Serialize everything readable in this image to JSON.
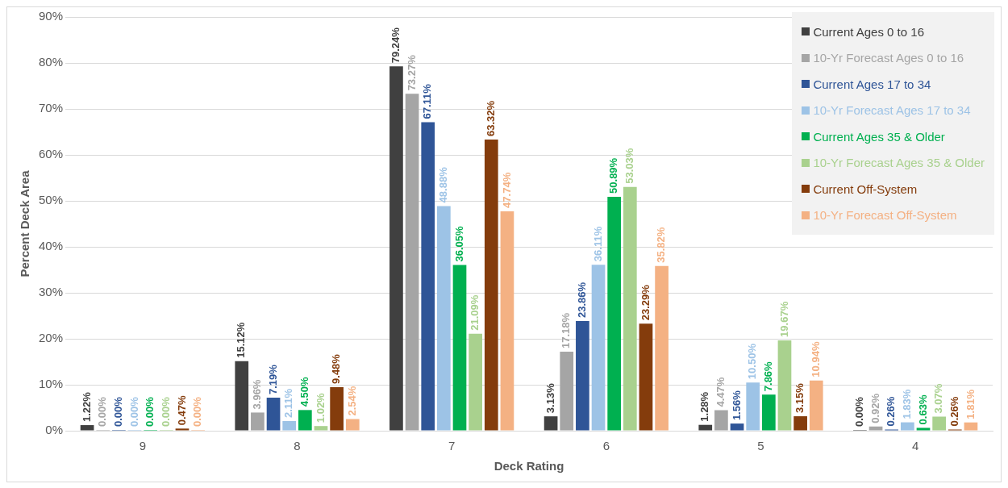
{
  "chart_data": {
    "type": "bar",
    "xlabel": "Deck Rating",
    "ylabel": "Percent Deck Area",
    "categories": [
      "9",
      "8",
      "7",
      "6",
      "5",
      "4"
    ],
    "ylim": [
      0,
      90
    ],
    "yticks": [
      {
        "value": 0,
        "label": "0%"
      },
      {
        "value": 10,
        "label": "10%"
      },
      {
        "value": 20,
        "label": "20%"
      },
      {
        "value": 30,
        "label": "30%"
      },
      {
        "value": 40,
        "label": "40%"
      },
      {
        "value": 50,
        "label": "50%"
      },
      {
        "value": 60,
        "label": "60%"
      },
      {
        "value": 70,
        "label": "70%"
      },
      {
        "value": 80,
        "label": "80%"
      },
      {
        "value": 90,
        "label": "90%"
      }
    ],
    "grid": "y",
    "legend": "top right",
    "series": [
      {
        "name": "Current Ages 0 to 16",
        "color": "#404040",
        "values": [
          1.22,
          15.12,
          79.24,
          3.13,
          1.28,
          0.0
        ],
        "value_labels": [
          "1.22%",
          "15.12%",
          "79.24%",
          "3.13%",
          "1.28%",
          "0.00%"
        ]
      },
      {
        "name": "10-Yr Forecast Ages 0 to 16",
        "color": "#a5a5a5",
        "values": [
          0.0,
          3.96,
          73.27,
          17.18,
          4.47,
          0.92
        ],
        "value_labels": [
          "0.00%",
          "3.96%",
          "73.27%",
          "17.18%",
          "4.47%",
          "0.92%"
        ]
      },
      {
        "name": "Current Ages 17 to 34",
        "color": "#2f5597",
        "values": [
          0.0,
          7.19,
          67.11,
          23.86,
          1.56,
          0.26
        ],
        "value_labels": [
          "0.00%",
          "7.19%",
          "67.11%",
          "23.86%",
          "1.56%",
          "0.26%"
        ]
      },
      {
        "name": "10-Yr Forecast Ages 17 to 34",
        "color": "#9dc3e6",
        "values": [
          0.0,
          2.11,
          48.88,
          36.11,
          10.5,
          1.83
        ],
        "value_labels": [
          "0.00%",
          "2.11%",
          "48.88%",
          "36.11%",
          "10.50%",
          "1.83%"
        ]
      },
      {
        "name": "Current Ages 35 & Older",
        "color": "#00b050",
        "values": [
          0.0,
          4.5,
          36.05,
          50.89,
          7.86,
          0.63
        ],
        "value_labels": [
          "0.00%",
          "4.50%",
          "36.05%",
          "50.89%",
          "7.86%",
          "0.63%"
        ]
      },
      {
        "name": "10-Yr Forecast Ages 35 & Older",
        "color": "#a9d18e",
        "values": [
          0.0,
          1.02,
          21.09,
          53.03,
          19.67,
          3.07
        ],
        "value_labels": [
          "0.00%",
          "1.02%",
          "21.09%",
          "53.03%",
          "19.67%",
          "3.07%"
        ]
      },
      {
        "name": "Current Off-System",
        "color": "#843c0c",
        "values": [
          0.47,
          9.48,
          63.32,
          23.29,
          3.15,
          0.26
        ],
        "value_labels": [
          "0.47%",
          "9.48%",
          "63.32%",
          "23.29%",
          "3.15%",
          "0.26%"
        ]
      },
      {
        "name": "10-Yr Forecast Off-System",
        "color": "#f4b183",
        "values": [
          0.0,
          2.54,
          47.74,
          35.82,
          10.94,
          1.81
        ],
        "value_labels": [
          "0.00%",
          "2.54%",
          "47.74%",
          "35.82%",
          "10.94%",
          "1.81%"
        ]
      }
    ]
  }
}
